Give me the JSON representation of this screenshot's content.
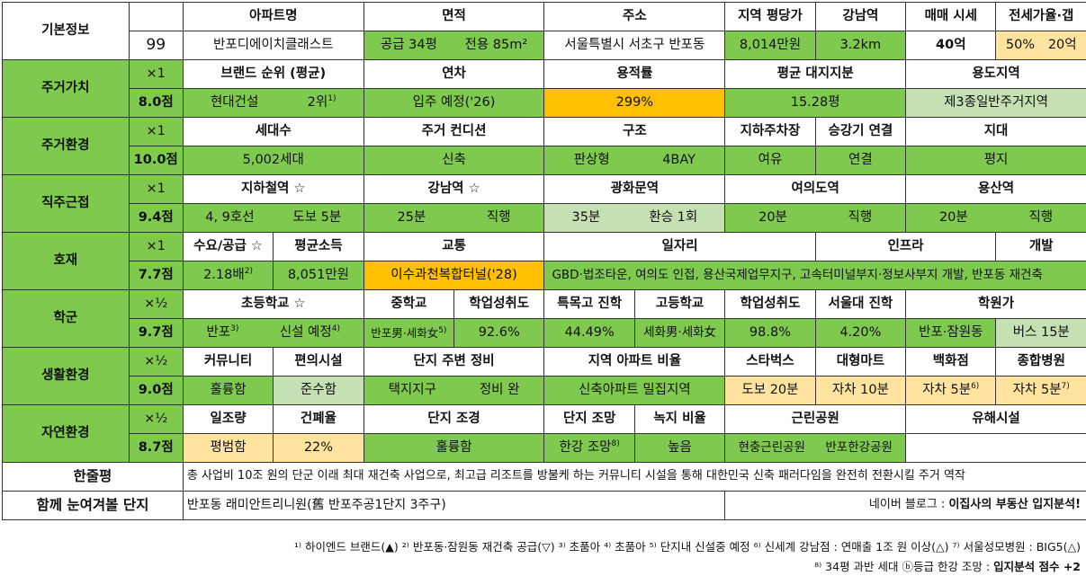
{
  "basic": {
    "label": "기본정보",
    "number": "99",
    "headers": [
      "아파트명",
      "면적",
      "주소",
      "지역 평당가",
      "강남역",
      "매매 시세",
      "전세가율·갭"
    ],
    "apt_name": "반포디에이치클래스트",
    "area_supply": "공급 34평",
    "area_exclusive": "전용 85m²",
    "address": "서울특별시 서초구 반포동",
    "price_per_pyeong": "8,014만원",
    "gangnam_distance": "3.2km",
    "sale_price": "40억",
    "jeonse_ratio": "50%",
    "jeonse_gap": "20억"
  },
  "residential_value": {
    "label": "주거가치",
    "multiplier": "×1",
    "score": "8.0점",
    "headers": [
      "브랜드 순위 (평균)",
      "연차",
      "용적률",
      "평균 대지지분",
      "용도지역"
    ],
    "brand": "현대건설",
    "rank": "2위",
    "rank_note": "1)",
    "year": "입주 예정('26)",
    "far": "299%",
    "land_share": "15.28평",
    "zoning": "제3종일반주거지역"
  },
  "residential_env": {
    "label": "주거환경",
    "multiplier": "×1",
    "score": "10.0점",
    "headers": [
      "세대수",
      "주거 컨디션",
      "구조",
      "지하주차장",
      "승강기 연결",
      "지대"
    ],
    "households": "5,002세대",
    "condition": "신축",
    "structure_type": "판상형",
    "bay": "4BAY",
    "parking": "여유",
    "elevator": "연결",
    "terrain": "평지"
  },
  "commute": {
    "label": "직주근접",
    "multiplier": "×1",
    "score": "9.4점",
    "headers": [
      "지하철역 ☆",
      "강남역 ☆",
      "광화문역",
      "여의도역",
      "용산역"
    ],
    "subway_lines": "4, 9호선",
    "subway_walk": "도보 5분",
    "gangnam_time": "25분",
    "gangnam_mode": "직행",
    "gwanghwamun_time": "35분",
    "gwanghwamun_mode": "환승 1회",
    "yeouido_time": "20분",
    "yeouido_mode": "직행",
    "yongsan_time": "20분",
    "yongsan_mode": "직행"
  },
  "development": {
    "label": "호재",
    "multiplier": "×1",
    "score": "7.7점",
    "headers": [
      "수요/공급 ☆",
      "평균소득",
      "교통",
      "일자리",
      "인프라",
      "개발"
    ],
    "supply_demand": "2.18배",
    "supply_demand_note": "2)",
    "income": "8,051만원",
    "transport": "이수과천복합터널('28)",
    "jobs_infra_dev": "GBD·법조타운, 여의도 인접, 용산국제업무지구, 고속터미널부지·정보사부지 개발, 반포동 재건축"
  },
  "school": {
    "label": "학군",
    "multiplier": "×½",
    "score": "9.7점",
    "headers": [
      "초등학교 ☆",
      "중학교",
      "학업성취도",
      "특목고 진학",
      "고등학교",
      "학업성취도",
      "서울대 진학",
      "학원가"
    ],
    "elementary_1": "반포",
    "elementary_1_note": "3)",
    "elementary_2": "신설 예정",
    "elementary_2_note": "4)",
    "middle": "반포男·세화女",
    "middle_note": "5)",
    "middle_achievement": "92.6%",
    "special_high": "44.49%",
    "high": "세화男·세화女",
    "high_achievement": "98.8%",
    "snu": "4.20%",
    "academy_area": "반포·잠원동",
    "academy_bus": "버스 15분"
  },
  "living": {
    "label": "생활환경",
    "multiplier": "×½",
    "score": "9.0점",
    "headers": [
      "커뮤니티",
      "편의시설",
      "단지 주변 정비",
      "지역 아파트 비율",
      "스타벅스",
      "대형마트",
      "백화점",
      "종합병원"
    ],
    "community": "훌륭함",
    "convenience": "준수함",
    "surroundings_1": "택지지구",
    "surroundings_2": "정비 완",
    "apt_ratio": "신축아파트 밀집지역",
    "starbucks": "도보 20분",
    "mart": "자차 10분",
    "dept_store": "자차 5분",
    "dept_store_note": "6)",
    "hospital": "자차 5분",
    "hospital_note": "7)"
  },
  "nature": {
    "label": "자연환경",
    "multiplier": "×½",
    "score": "8.7점",
    "headers": [
      "일조량",
      "건폐율",
      "단지 조경",
      "단지 조망",
      "녹지 비율",
      "근린공원",
      "유해시설"
    ],
    "sunlight": "평범함",
    "coverage": "22%",
    "landscaping": "훌륭함",
    "view": "한강 조망",
    "view_note": "8)",
    "green_ratio": "높음",
    "park_1": "현충근린공원",
    "park_2": "반포한강공원",
    "hazard": ""
  },
  "summary": {
    "label": "한줄평",
    "text": "총 사업비 10조 원의 단군 이래 최대 재건축 사업으로, 최고급 리조트를 방불케 하는 커뮤니티 시설을 통해 대한민국 신축 패러다임을 완전히 전환시킬 주거 역작"
  },
  "compare": {
    "label": "함께 눈여겨볼 단지",
    "text": "반포동 래미안트리니원(舊 반포주공1단지 3주구)",
    "blog_prefix": "네이버 블로그 : ",
    "blog_name": "이집사의 부동산 입지분석!"
  },
  "footnotes": {
    "line1": "¹⁾ 하이엔드 브랜드(▲) ²⁾ 반포동·잠원동 재건축 공급(▽) ³⁾ 초품아 ⁴⁾ 초품아 ⁵⁾ 단지내 신설중 예정 ⁶⁾ 신세계 강남점 : 연매출 1조 원 이상(△) ⁷⁾ 서울성모병원 : BIG5(△)",
    "line2": "⁸⁾ 34평 과반 세대 ⓑ등급 한강 조망 : ",
    "line2_bold": "입지분석 점수 +2"
  },
  "colors": {
    "green": "#7fc94f",
    "light_green": "#c5e0b3",
    "orange": "#ffc000",
    "yellow": "#ffe39e"
  }
}
